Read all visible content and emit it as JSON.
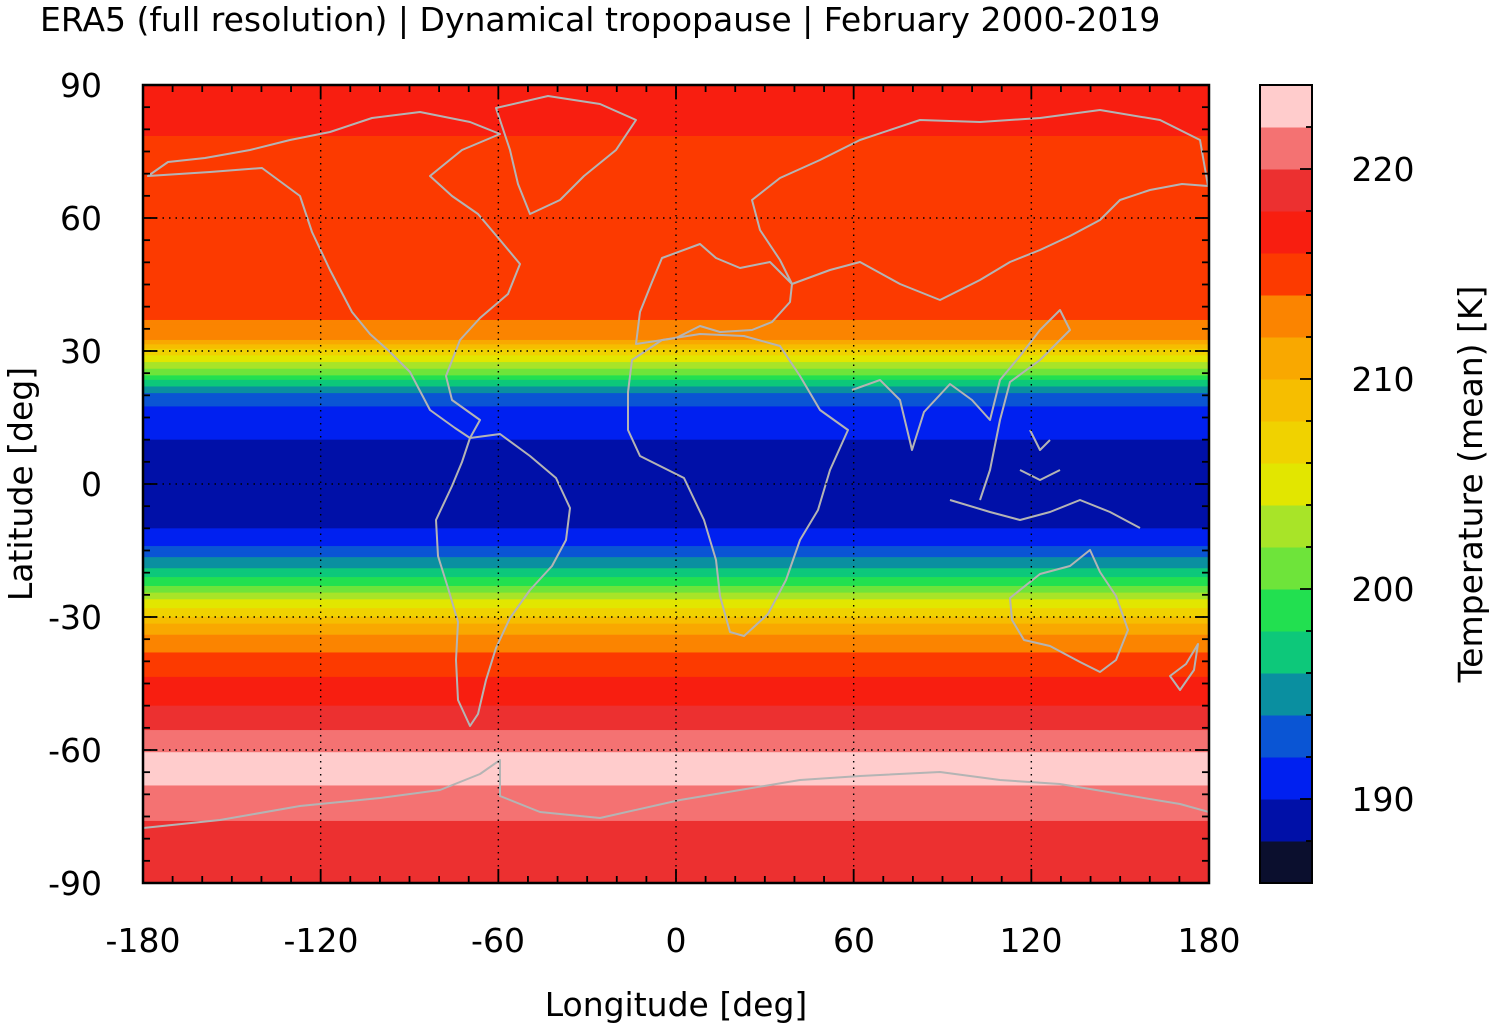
{
  "chart_data": {
    "type": "heatmap",
    "title": "ERA5 (full resolution) | Dynamical tropopause | February 2000-2019",
    "xlabel": "Longitude [deg]",
    "ylabel": "Latitude [deg]",
    "colorbar_label": "Temperature (mean) [K]",
    "xlim": [
      -180,
      180
    ],
    "ylim": [
      -90,
      90
    ],
    "x_ticks": [
      "-180",
      "-120",
      "-60",
      "0",
      "60",
      "120",
      "180"
    ],
    "y_ticks": [
      "90",
      "60",
      "30",
      "0",
      "-30",
      "-60",
      "-90"
    ],
    "colorbar_range": [
      186,
      224
    ],
    "colorbar_ticks": [
      "220",
      "210",
      "200",
      "190"
    ],
    "colorbar_tick_values": [
      220,
      210,
      200,
      190
    ],
    "grid": true,
    "grid_style": "dotted",
    "overlay": "coastlines (gray)",
    "color_levels": [
      {
        "from": 186,
        "to": 188,
        "color": "#0b0f2e"
      },
      {
        "from": 188,
        "to": 190,
        "color": "#0010a8"
      },
      {
        "from": 190,
        "to": 192,
        "color": "#0020f0"
      },
      {
        "from": 192,
        "to": 194,
        "color": "#0a55d4"
      },
      {
        "from": 194,
        "to": 196,
        "color": "#0a8fa0"
      },
      {
        "from": 196,
        "to": 198,
        "color": "#0dc87a"
      },
      {
        "from": 198,
        "to": 200,
        "color": "#22e050"
      },
      {
        "from": 200,
        "to": 202,
        "color": "#6ee43a"
      },
      {
        "from": 202,
        "to": 204,
        "color": "#a8e428"
      },
      {
        "from": 204,
        "to": 206,
        "color": "#e2e600"
      },
      {
        "from": 206,
        "to": 208,
        "color": "#f0d200"
      },
      {
        "from": 208,
        "to": 210,
        "color": "#f6be00"
      },
      {
        "from": 210,
        "to": 212,
        "color": "#f9a800"
      },
      {
        "from": 212,
        "to": 214,
        "color": "#fb8400"
      },
      {
        "from": 214,
        "to": 216,
        "color": "#fc3a00"
      },
      {
        "from": 216,
        "to": 218,
        "color": "#f81e10"
      },
      {
        "from": 218,
        "to": 220,
        "color": "#ec3030"
      },
      {
        "from": 220,
        "to": 222,
        "color": "#f47272"
      },
      {
        "from": 222,
        "to": 224,
        "color": "#ffcccc"
      }
    ],
    "zonal_profile": {
      "lat": [
        90,
        75,
        60,
        50,
        40,
        33,
        30,
        27,
        24,
        20,
        15,
        10,
        5,
        0,
        -5,
        -10,
        -15,
        -20,
        -24,
        -27,
        -30,
        -33,
        -40,
        -50,
        -58,
        -63,
        -68,
        -72,
        -80,
        -90
      ],
      "temp": [
        217.5,
        215.5,
        215.0,
        215.0,
        215.0,
        212.5,
        207.0,
        203.0,
        199.0,
        193.5,
        190.5,
        190.0,
        189.5,
        189.0,
        189.5,
        190.0,
        192.5,
        197.0,
        201.0,
        205.0,
        208.0,
        211.5,
        215.0,
        218.0,
        221.0,
        223.0,
        222.0,
        221.0,
        219.0,
        219.0
      ]
    }
  }
}
